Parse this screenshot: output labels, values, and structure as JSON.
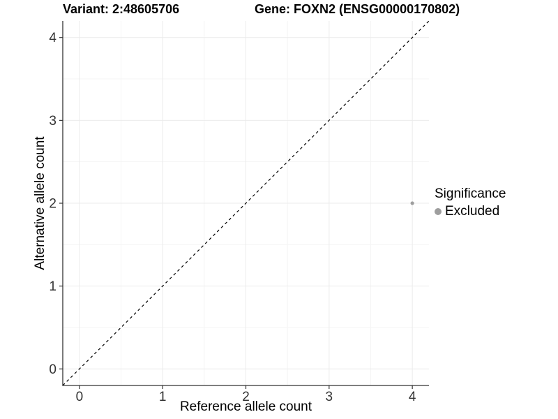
{
  "titles": {
    "variant": "Variant: 2:48605706",
    "gene": "Gene: FOXN2 (ENSG00000170802)"
  },
  "chart_data": {
    "type": "scatter",
    "title": "Variant: 2:48605706   Gene: FOXN2 (ENSG00000170802)",
    "xlabel": "Reference allele count",
    "ylabel": "Alternative allele count",
    "xlim": [
      -0.2,
      4.2
    ],
    "ylim": [
      -0.2,
      4.2
    ],
    "xticks": [
      0,
      1,
      2,
      3,
      4
    ],
    "yticks": [
      0,
      1,
      2,
      3,
      4
    ],
    "minor_ticks": [
      0.5,
      1.5,
      2.5,
      3.5
    ],
    "points": [
      {
        "x": 4,
        "y": 2,
        "significance": "Excluded"
      }
    ],
    "point_color": "#9e9e9e",
    "identity_line": {
      "type": "y=x",
      "style": "dashed",
      "color": "#000000"
    },
    "grid": {
      "on": true,
      "major_color": "#ebebeb",
      "minor_color": "#f5f5f5"
    },
    "axis_color": "#333333",
    "legend": {
      "position": "right",
      "title": "Significance",
      "entries": [
        {
          "label": "Excluded",
          "color": "#9e9e9e"
        }
      ]
    }
  }
}
